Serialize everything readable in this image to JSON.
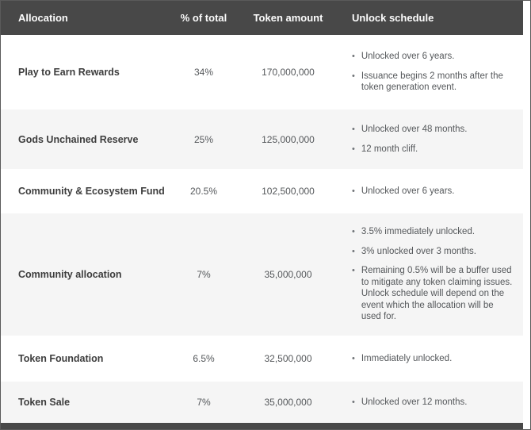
{
  "columns": [
    "Allocation",
    "% of total",
    "Token amount",
    "Unlock schedule"
  ],
  "rows": [
    {
      "allocation": "Play to Earn Rewards",
      "percent": "34%",
      "amount": "170,000,000",
      "schedule": [
        "Unlocked over 6 years.",
        "Issuance begins 2 months after the token generation event."
      ]
    },
    {
      "allocation": "Gods Unchained Reserve",
      "percent": "25%",
      "amount": "125,000,000",
      "schedule": [
        "Unlocked over 48 months.",
        "12 month cliff."
      ]
    },
    {
      "allocation": "Community & Ecosystem Fund",
      "percent": "20.5%",
      "amount": "102,500,000",
      "schedule": [
        "Unlocked over 6 years."
      ]
    },
    {
      "allocation": "Community allocation",
      "percent": "7%",
      "amount": "35,000,000",
      "schedule": [
        "3.5% immediately unlocked.",
        "3% unlocked over 3 months.",
        "Remaining 0.5% will be a buffer used to mitigate any token claiming issues. Unlock schedule will depend on the event which the allocation will be used for."
      ]
    },
    {
      "allocation": "Token Foundation",
      "percent": "6.5%",
      "amount": "32,500,000",
      "schedule": [
        "Immediately unlocked."
      ]
    },
    {
      "allocation": "Token Sale",
      "percent": "7%",
      "amount": "35,000,000",
      "schedule": [
        "Unlocked over 12 months."
      ]
    }
  ],
  "icons": {
    "bullet": "•"
  },
  "colors": {
    "header_bg": "#484848",
    "header_text": "#fcfcfc",
    "row_bg": "#ffffff",
    "row_alt_bg": "#f5f5f5",
    "name_text": "#3d3d3d",
    "body_text": "#55585b",
    "border": "#5a5a5a",
    "bottom_bar": "#484848"
  }
}
